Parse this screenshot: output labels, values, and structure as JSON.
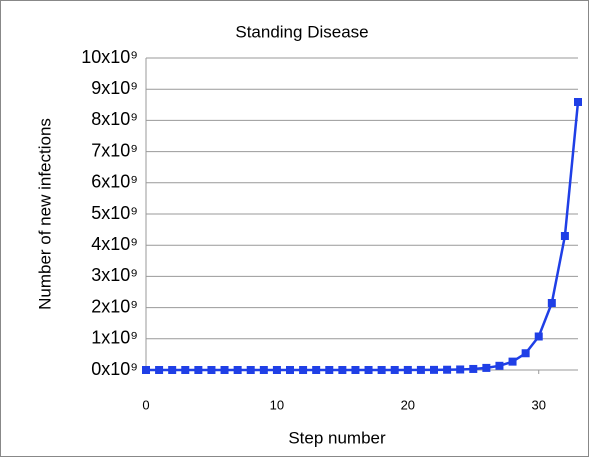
{
  "chart_data": {
    "type": "line",
    "title": "Standing Disease",
    "x_label": "Step number",
    "y_label": "Number of new infections",
    "x": [
      0,
      1,
      2,
      3,
      4,
      5,
      6,
      7,
      8,
      9,
      10,
      11,
      12,
      13,
      14,
      15,
      16,
      17,
      18,
      19,
      20,
      21,
      22,
      23,
      24,
      25,
      26,
      27,
      28,
      29,
      30,
      31,
      32,
      33
    ],
    "series": [
      {
        "name": "Standing Disease",
        "color": "#1f3fe6",
        "values": [
          1,
          2,
          4,
          8,
          16,
          32,
          64,
          128,
          256,
          512,
          1024,
          2048,
          4096,
          8192,
          16384,
          32768,
          65536,
          131072,
          262144,
          524288,
          1048576,
          2097152,
          4194304,
          8388608,
          16777216,
          33554432,
          67108864,
          134217728,
          268435456,
          536870912,
          1073741824,
          2147483648,
          4294967296,
          8589934592
        ]
      }
    ],
    "xlim": [
      0,
      33
    ],
    "xticks": [
      0,
      10,
      20,
      30
    ],
    "ylim": [
      0,
      10000000000
    ],
    "yticks": [
      {
        "value": 0,
        "label": "0x10⁹"
      },
      {
        "value": 1000000000,
        "label": "1x10⁹"
      },
      {
        "value": 2000000000,
        "label": "2x10⁹"
      },
      {
        "value": 3000000000,
        "label": "3x10⁹"
      },
      {
        "value": 4000000000,
        "label": "4x10⁹"
      },
      {
        "value": 5000000000,
        "label": "5x10⁹"
      },
      {
        "value": 6000000000,
        "label": "6x10⁹"
      },
      {
        "value": 7000000000,
        "label": "7x10⁹"
      },
      {
        "value": 8000000000,
        "label": "8x10⁹"
      },
      {
        "value": 9000000000,
        "label": "9x10⁹"
      },
      {
        "value": 10000000000,
        "label": "10x10⁹"
      }
    ],
    "grid": true
  }
}
